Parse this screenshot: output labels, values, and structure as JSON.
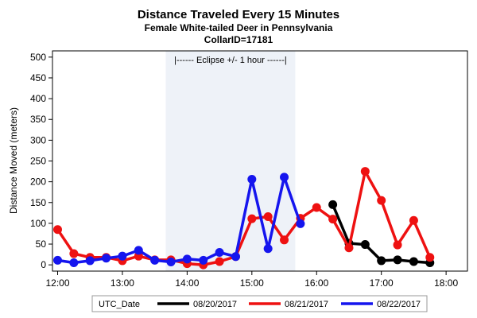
{
  "chart_data": {
    "type": "line",
    "title": "Distance Traveled Every 15 Minutes",
    "subtitle_1": "Female White-tailed Deer in Pennsylvania",
    "subtitle_2": "CollarID=17181",
    "xlabel": "",
    "ylabel": "Distance Moved (meters)",
    "x_unit": "hours UTC",
    "xlim": [
      11.92,
      18.33
    ],
    "ylim": [
      -15,
      515
    ],
    "x_ticks": [
      12,
      13,
      14,
      15,
      16,
      17,
      18
    ],
    "x_tick_labels": [
      "12:00",
      "13:00",
      "14:00",
      "15:00",
      "16:00",
      "17:00",
      "18:00"
    ],
    "y_ticks": [
      0,
      50,
      100,
      150,
      200,
      250,
      300,
      350,
      400,
      450,
      500
    ],
    "y_tick_labels": [
      "0",
      "50",
      "100",
      "150",
      "200",
      "250",
      "300",
      "350",
      "400",
      "450",
      "500"
    ],
    "grid": false,
    "legend_title": "UTC_Date",
    "legend_position": "bottom",
    "eclipse_band": {
      "x_start": 13.67,
      "x_end": 15.67,
      "label": "|------  Eclipse +/- 1 hour  ------|",
      "color": "#eef2f8"
    },
    "series": [
      {
        "name": "08/20/2017",
        "color": "#000000",
        "x": [
          16.25,
          16.5,
          16.75,
          17.0,
          17.25,
          17.5,
          17.75
        ],
        "y": [
          145,
          52,
          49,
          10,
          12,
          8,
          5
        ]
      },
      {
        "name": "08/21/2017",
        "color": "#ee1111",
        "x": [
          12.0,
          12.25,
          12.5,
          12.75,
          13.0,
          13.25,
          13.5,
          13.75,
          14.0,
          14.25,
          14.5,
          14.75,
          15.0,
          15.25,
          15.5,
          15.75,
          16.0,
          16.25,
          16.5,
          16.75,
          17.0,
          17.25,
          17.5,
          17.75
        ],
        "y": [
          85,
          27,
          18,
          18,
          10,
          21,
          12,
          12,
          3,
          0,
          8,
          20,
          111,
          116,
          60,
          112,
          138,
          110,
          41,
          225,
          155,
          48,
          107,
          18
        ]
      },
      {
        "name": "08/22/2017",
        "color": "#1515ee",
        "x": [
          12.0,
          12.25,
          12.5,
          12.75,
          13.0,
          13.25,
          13.5,
          13.75,
          14.0,
          14.25,
          14.5,
          14.75,
          15.0,
          15.25,
          15.5,
          15.75
        ],
        "y": [
          11,
          5,
          10,
          16,
          21,
          35,
          11,
          7,
          14,
          11,
          30,
          20,
          206,
          39,
          211,
          99
        ]
      }
    ]
  }
}
